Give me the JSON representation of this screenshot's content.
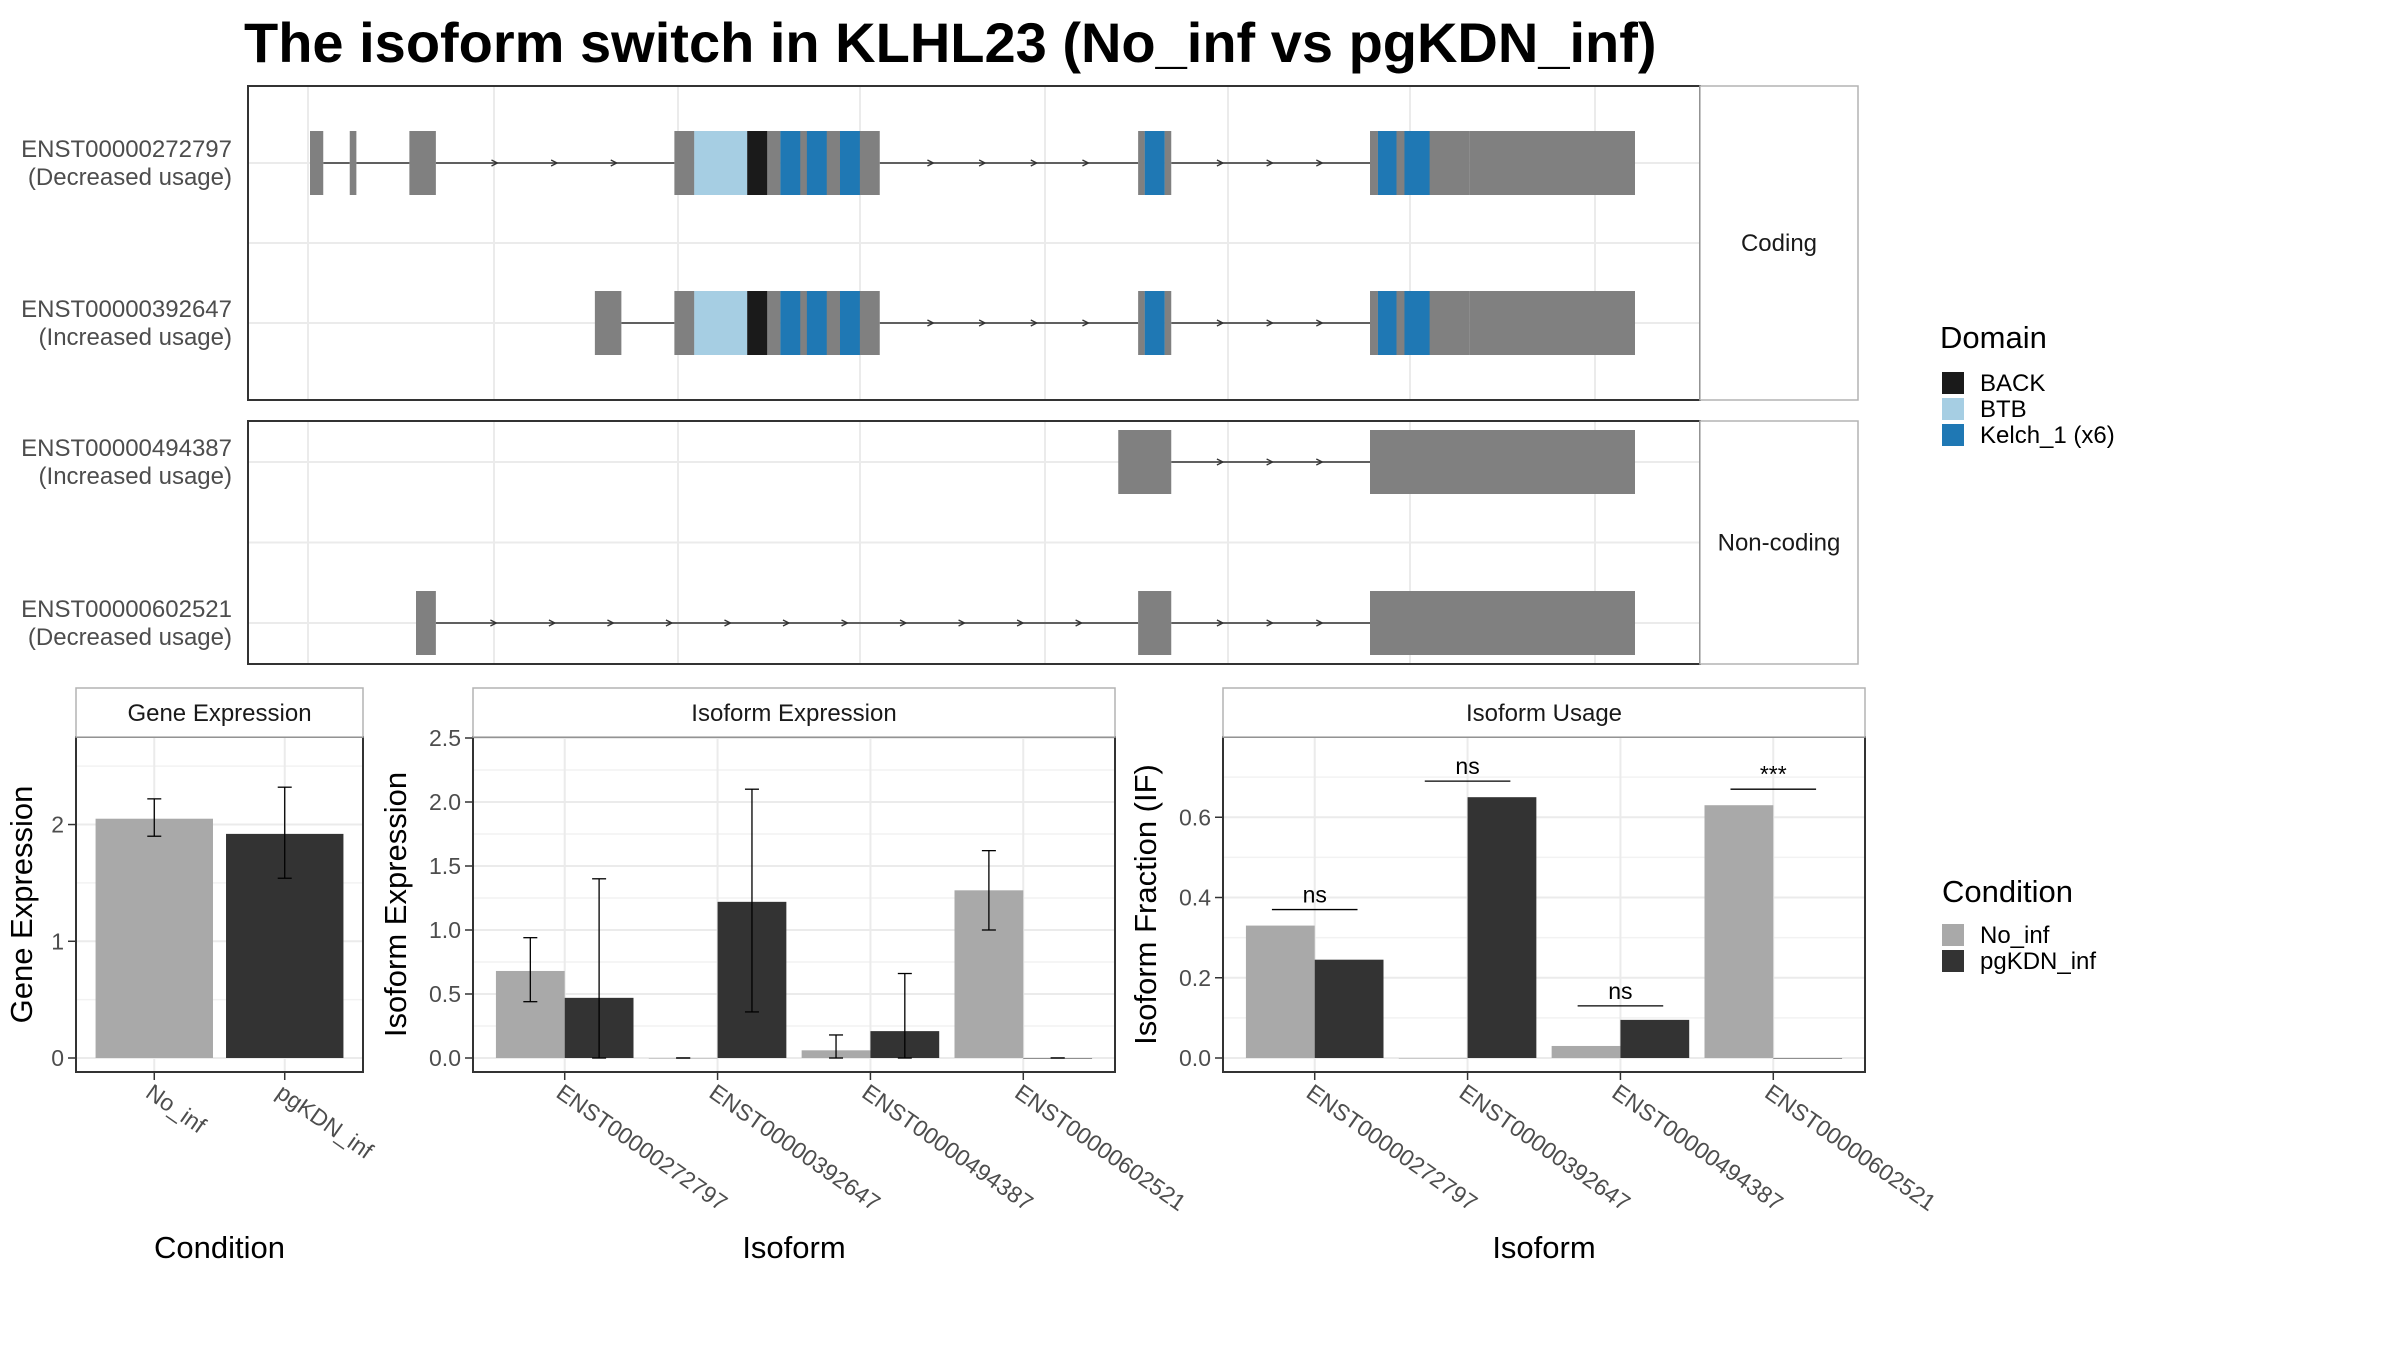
{
  "title": "The isoform switch in KLHL23 (No_inf vs pgKDN_inf)",
  "colors": {
    "no_inf": "#a9a9a9",
    "pgkdn_inf": "#333333",
    "exon": "#808080",
    "BACK": "#1a1a1a",
    "BTB": "#a6cee3",
    "Kelch_1 (x6)": "#1f78b4"
  },
  "chart_data": [
    {
      "type": "gene-structure",
      "panels": [
        {
          "label": "Coding",
          "transcripts": [
            {
              "id": "ENST00000272797",
              "usage": "(Decreased usage)",
              "exons": [
                [
                  0,
                  10
                ],
                [
                  30,
                  35
                ],
                [
                  75,
                  95
                ],
                [
                  275,
                  290
                ],
                [
                  290,
                  308
                ],
                [
                  308,
                  330
                ],
                [
                  330,
                  340
                ],
                [
                  340,
                  355
                ],
                [
                  355,
                  400
                ],
                [
                  400,
                  410
                ],
                [
                  410,
                  420
                ],
                [
                  420,
                  430
                ],
                [
                  625,
                  630
                ],
                [
                  630,
                  645
                ],
                [
                  645,
                  650
                ],
                [
                  800,
                  806
                ],
                [
                  806,
                  815
                ],
                [
                  815,
                  830
                ],
                [
                  830,
                  840
                ],
                [
                  840,
                  875
                ],
                [
                  875,
                  1000
                ]
              ],
              "domains": [
                [
                  290,
                  330,
                  "BTB"
                ],
                [
                  330,
                  345,
                  "BACK"
                ],
                [
                  355,
                  370,
                  "Kelch_1 (x6)"
                ],
                [
                  375,
                  390,
                  "Kelch_1 (x6)"
                ],
                [
                  400,
                  415,
                  "Kelch_1 (x6)"
                ],
                [
                  630,
                  645,
                  "Kelch_1 (x6)"
                ],
                [
                  806,
                  820,
                  "Kelch_1 (x6)"
                ],
                [
                  826,
                  845,
                  "Kelch_1 (x6)"
                ]
              ]
            },
            {
              "id": "ENST00000392647",
              "usage": "(Increased usage)",
              "exons": [
                [
                  215,
                  235
                ],
                [
                  275,
                  290
                ],
                [
                  290,
                  308
                ],
                [
                  308,
                  330
                ],
                [
                  330,
                  340
                ],
                [
                  340,
                  355
                ],
                [
                  355,
                  400
                ],
                [
                  400,
                  410
                ],
                [
                  410,
                  420
                ],
                [
                  420,
                  430
                ],
                [
                  625,
                  630
                ],
                [
                  630,
                  645
                ],
                [
                  645,
                  650
                ],
                [
                  800,
                  806
                ],
                [
                  806,
                  815
                ],
                [
                  815,
                  830
                ],
                [
                  830,
                  840
                ],
                [
                  840,
                  875
                ],
                [
                  875,
                  1000
                ]
              ],
              "domains": [
                [
                  290,
                  330,
                  "BTB"
                ],
                [
                  330,
                  345,
                  "BACK"
                ],
                [
                  355,
                  370,
                  "Kelch_1 (x6)"
                ],
                [
                  375,
                  390,
                  "Kelch_1 (x6)"
                ],
                [
                  400,
                  415,
                  "Kelch_1 (x6)"
                ],
                [
                  630,
                  645,
                  "Kelch_1 (x6)"
                ],
                [
                  806,
                  820,
                  "Kelch_1 (x6)"
                ],
                [
                  826,
                  845,
                  "Kelch_1 (x6)"
                ]
              ]
            }
          ]
        },
        {
          "label": "Non-coding",
          "transcripts": [
            {
              "id": "ENST00000494387",
              "usage": "(Increased usage)",
              "exons": [
                [
                  610,
                  650
                ],
                [
                  800,
                  1000
                ]
              ],
              "domains": []
            },
            {
              "id": "ENST00000602521",
              "usage": "(Decreased usage)",
              "exons": [
                [
                  80,
                  95
                ],
                [
                  625,
                  650
                ],
                [
                  800,
                  1000
                ]
              ],
              "domains": []
            }
          ]
        }
      ],
      "legend": {
        "title": "Domain",
        "entries": [
          "BACK",
          "BTB",
          "Kelch_1 (x6)"
        ]
      }
    },
    {
      "type": "bar",
      "title": "Gene Expression",
      "xlabel": "Condition",
      "ylabel": "Gene Expression",
      "ylim": [
        0,
        2.75
      ],
      "yticks": [
        0,
        1,
        2
      ],
      "categories": [
        "No_inf",
        "pgKDN_inf"
      ],
      "values": [
        2.05,
        1.92
      ],
      "errors": [
        [
          1.9,
          2.22
        ],
        [
          1.54,
          2.32
        ]
      ]
    },
    {
      "type": "bar",
      "title": "Isoform Expression",
      "xlabel": "Isoform",
      "ylabel": "Isoform Expression",
      "ylim": [
        0,
        2.5
      ],
      "yticks": [
        0.0,
        0.5,
        1.0,
        1.5,
        2.0,
        2.5
      ],
      "categories": [
        "ENST00000272797",
        "ENST00000392647",
        "ENST00000494387",
        "ENST00000602521"
      ],
      "series": [
        {
          "name": "No_inf",
          "values": [
            0.68,
            0.0,
            0.06,
            1.31
          ],
          "errors": [
            [
              0.44,
              0.94
            ],
            [
              0.0,
              0.0
            ],
            [
              0.0,
              0.18
            ],
            [
              1.0,
              1.62
            ]
          ]
        },
        {
          "name": "pgKDN_inf",
          "values": [
            0.47,
            1.22,
            0.21,
            0.0
          ],
          "errors": [
            [
              0.0,
              1.4
            ],
            [
              0.36,
              2.1
            ],
            [
              0.0,
              0.66
            ],
            [
              0.0,
              0.0
            ]
          ]
        }
      ]
    },
    {
      "type": "bar",
      "title": "Isoform Usage",
      "xlabel": "Isoform",
      "ylabel": "Isoform Fraction (IF)",
      "ylim": [
        0,
        0.8
      ],
      "yticks": [
        0.0,
        0.2,
        0.4,
        0.6
      ],
      "categories": [
        "ENST00000272797",
        "ENST00000392647",
        "ENST00000494387",
        "ENST00000602521"
      ],
      "series": [
        {
          "name": "No_inf",
          "values": [
            0.33,
            0.0,
            0.03,
            0.63
          ]
        },
        {
          "name": "pgKDN_inf",
          "values": [
            0.245,
            0.65,
            0.095,
            0.0
          ]
        }
      ],
      "significance": [
        "ns",
        "ns",
        "ns",
        "***"
      ],
      "significance_y": [
        0.37,
        0.69,
        0.13,
        0.67
      ]
    }
  ],
  "condition_legend": {
    "title": "Condition",
    "entries": [
      "No_inf",
      "pgKDN_inf"
    ]
  }
}
